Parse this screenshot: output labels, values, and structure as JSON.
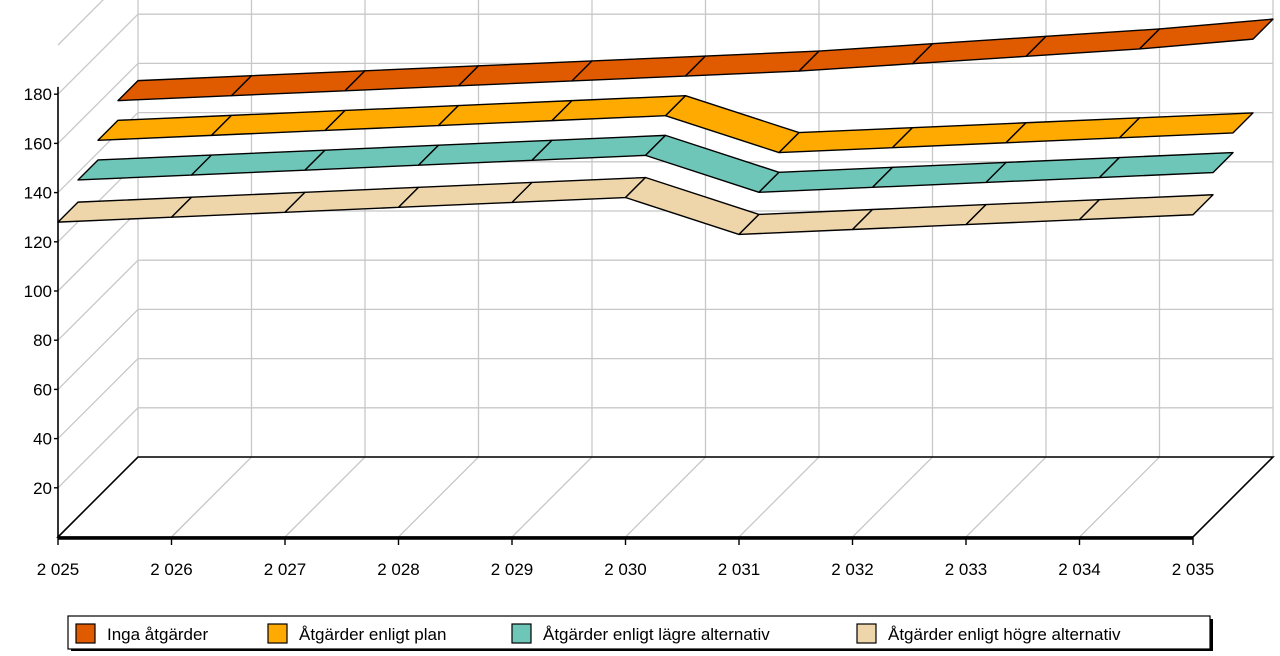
{
  "chart_data": {
    "type": "area",
    "variant": "3d-stacked-ribbons",
    "title": "",
    "xlabel": "",
    "ylabel": "",
    "categories": [
      "2 025",
      "2 026",
      "2 027",
      "2 028",
      "2 029",
      "2 030",
      "2 031",
      "2 032",
      "2 033",
      "2 034",
      "2 035"
    ],
    "yticks": [
      "20",
      "40",
      "60",
      "80",
      "100",
      "120",
      "140",
      "160",
      "180"
    ],
    "ylim": [
      0,
      180
    ],
    "grid": true,
    "legend_position": "bottom",
    "series": [
      {
        "name": "Inga åtgärder",
        "color": "#E05A00",
        "values": [
          153,
          155,
          157,
          159,
          161,
          163,
          165,
          168,
          171,
          174,
          178
        ]
      },
      {
        "name": "Åtgärder enligt plan",
        "color": "#FFAA00",
        "values": [
          145,
          147,
          149,
          151,
          153,
          155,
          140,
          142,
          144,
          146,
          148
        ]
      },
      {
        "name": "Åtgärder enligt lägre alternativ",
        "color": "#6EC6B8",
        "values": [
          137,
          139,
          141,
          143,
          145,
          147,
          132,
          134,
          136,
          138,
          140
        ]
      },
      {
        "name": "Åtgärder enligt högre alternativ",
        "color": "#EED5AA",
        "values": [
          128,
          130,
          132,
          134,
          136,
          138,
          123,
          125,
          127,
          129,
          131
        ]
      }
    ]
  }
}
